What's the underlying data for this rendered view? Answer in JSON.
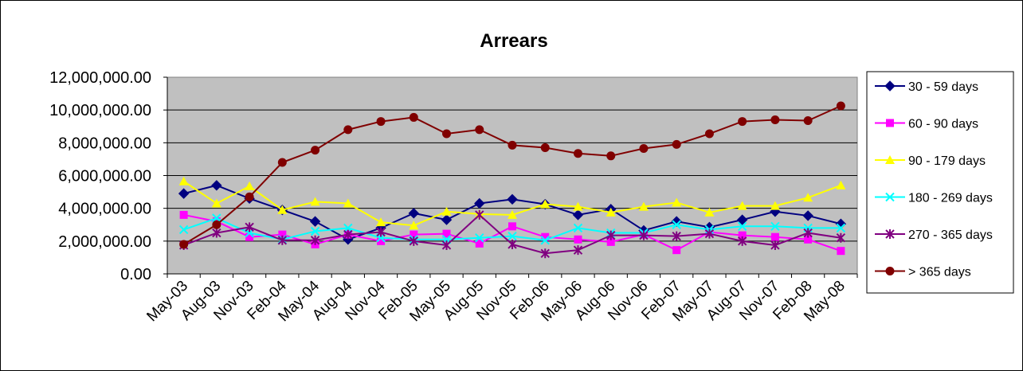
{
  "chart_data": {
    "type": "line",
    "title": "Arrears",
    "xlabel": "",
    "ylabel": "",
    "ylim": [
      0,
      12000000
    ],
    "yticks": [
      0,
      2000000,
      4000000,
      6000000,
      8000000,
      10000000,
      12000000
    ],
    "ytick_labels": [
      "0.00",
      "2,000,000.00",
      "4,000,000.00",
      "6,000,000.00",
      "8,000,000.00",
      "10,000,000.00",
      "12,000,000.00"
    ],
    "grid": true,
    "plot_background": "#c0c0c0",
    "legend_position": "right",
    "categories": [
      "May-03",
      "Aug-03",
      "Nov-03",
      "Feb-04",
      "May-04",
      "Aug-04",
      "Nov-04",
      "Feb-05",
      "May-05",
      "Aug-05",
      "Nov-05",
      "Feb-06",
      "May-06",
      "Aug-06",
      "Nov-06",
      "Feb-07",
      "May-07",
      "Aug-07",
      "Nov-07",
      "Feb-08",
      "May-08"
    ],
    "series": [
      {
        "name": "30 - 59 days",
        "color": "#000080",
        "marker": "diamond",
        "values": [
          4900000,
          5400000,
          4600000,
          3900000,
          3200000,
          2100000,
          2800000,
          3700000,
          3300000,
          4300000,
          4550000,
          4250000,
          3600000,
          3950000,
          2650000,
          3200000,
          2850000,
          3300000,
          3800000,
          3550000,
          3050000
        ]
      },
      {
        "name": "60 - 90 days",
        "color": "#ff00ff",
        "marker": "square",
        "values": [
          3600000,
          3200000,
          2250000,
          2400000,
          1800000,
          2400000,
          2000000,
          2400000,
          2450000,
          1850000,
          2900000,
          2250000,
          2100000,
          1950000,
          2400000,
          1450000,
          2550000,
          2350000,
          2250000,
          2100000,
          1400000
        ]
      },
      {
        "name": "90 - 179 days",
        "color": "#ffff00",
        "marker": "triangle",
        "values": [
          5650000,
          4300000,
          5350000,
          3900000,
          4400000,
          4300000,
          3150000,
          2950000,
          3800000,
          3650000,
          3600000,
          4250000,
          4100000,
          3750000,
          4100000,
          4350000,
          3750000,
          4150000,
          4150000,
          4650000,
          5400000
        ]
      },
      {
        "name": "180 - 269 days",
        "color": "#00ffff",
        "marker": "x",
        "values": [
          2700000,
          3400000,
          2500000,
          2100000,
          2600000,
          2800000,
          2200000,
          2100000,
          2100000,
          2200000,
          2300000,
          2050000,
          2800000,
          2500000,
          2500000,
          3000000,
          2700000,
          2900000,
          2900000,
          2800000,
          2800000
        ]
      },
      {
        "name": "270 - 365 days",
        "color": "#800080",
        "marker": "star",
        "values": [
          1750000,
          2500000,
          2850000,
          2050000,
          2050000,
          2400000,
          2550000,
          2000000,
          1750000,
          3600000,
          1800000,
          1250000,
          1450000,
          2350000,
          2350000,
          2300000,
          2450000,
          2000000,
          1750000,
          2500000,
          2200000
        ]
      },
      {
        "name": "> 365 days",
        "color": "#800000",
        "marker": "circle",
        "values": [
          1800000,
          3000000,
          4700000,
          6800000,
          7550000,
          8800000,
          9300000,
          9550000,
          8550000,
          8800000,
          7850000,
          7700000,
          7350000,
          7200000,
          7650000,
          7900000,
          8550000,
          9300000,
          9400000,
          9350000,
          10250000
        ]
      }
    ]
  }
}
